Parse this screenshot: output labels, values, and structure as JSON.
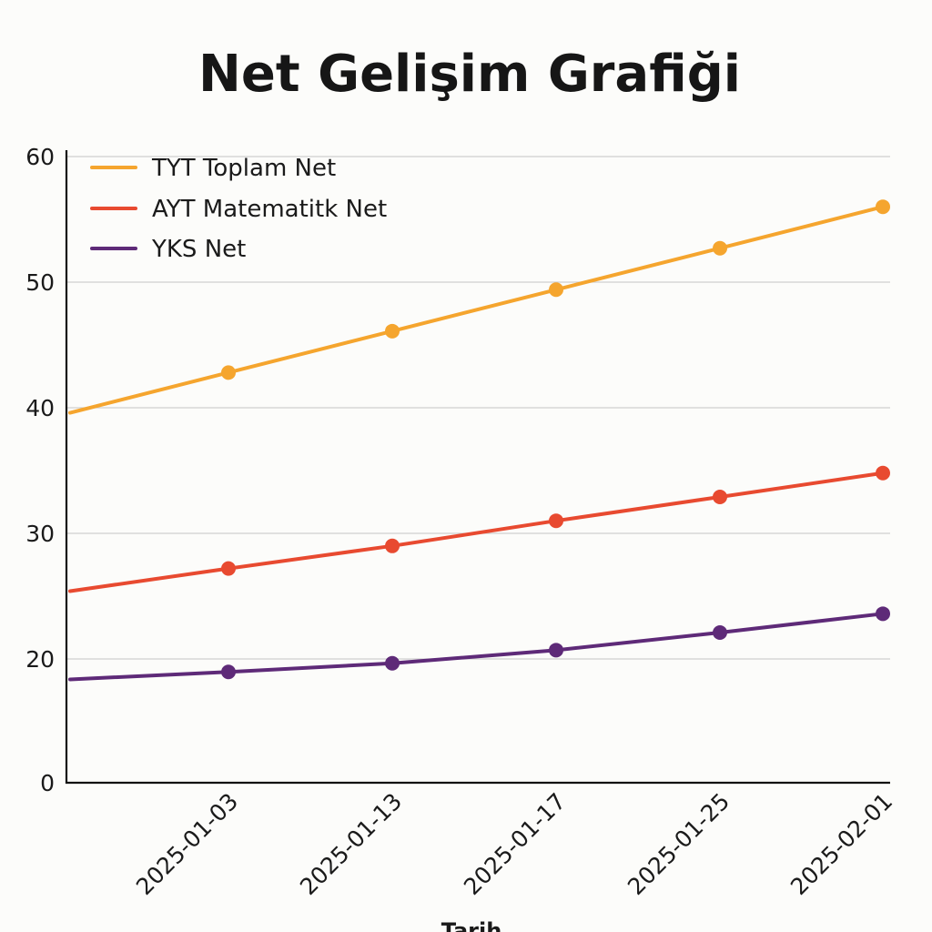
{
  "chart_data": {
    "type": "line",
    "title": "Net Gelişim Grafiği",
    "xlabel": "Tarih",
    "ylabel": "",
    "x": [
      "2025-01-03",
      "2025-01-13",
      "2025-01-17",
      "2025-01-25",
      "2025-02-01"
    ],
    "y_ticks": [
      "0",
      "20",
      "30",
      "40",
      "50",
      "60"
    ],
    "series": [
      {
        "name": "TYT Toplam Net",
        "color": "#f5a52e",
        "values": [
          42.8,
          46.1,
          49.4,
          52.7,
          56.0
        ],
        "start_value": 39.6
      },
      {
        "name": "AYT Matematitk Net",
        "color": "#e84a30",
        "values": [
          27.2,
          29.0,
          31.0,
          32.9,
          34.8
        ],
        "start_value": 25.4
      },
      {
        "name": "YKS Net",
        "color": "#5e2a78",
        "values": [
          17.9,
          19.3,
          20.7,
          22.1,
          23.6
        ],
        "start_value": 16.7
      }
    ],
    "grid": true,
    "legend": "top-left"
  }
}
